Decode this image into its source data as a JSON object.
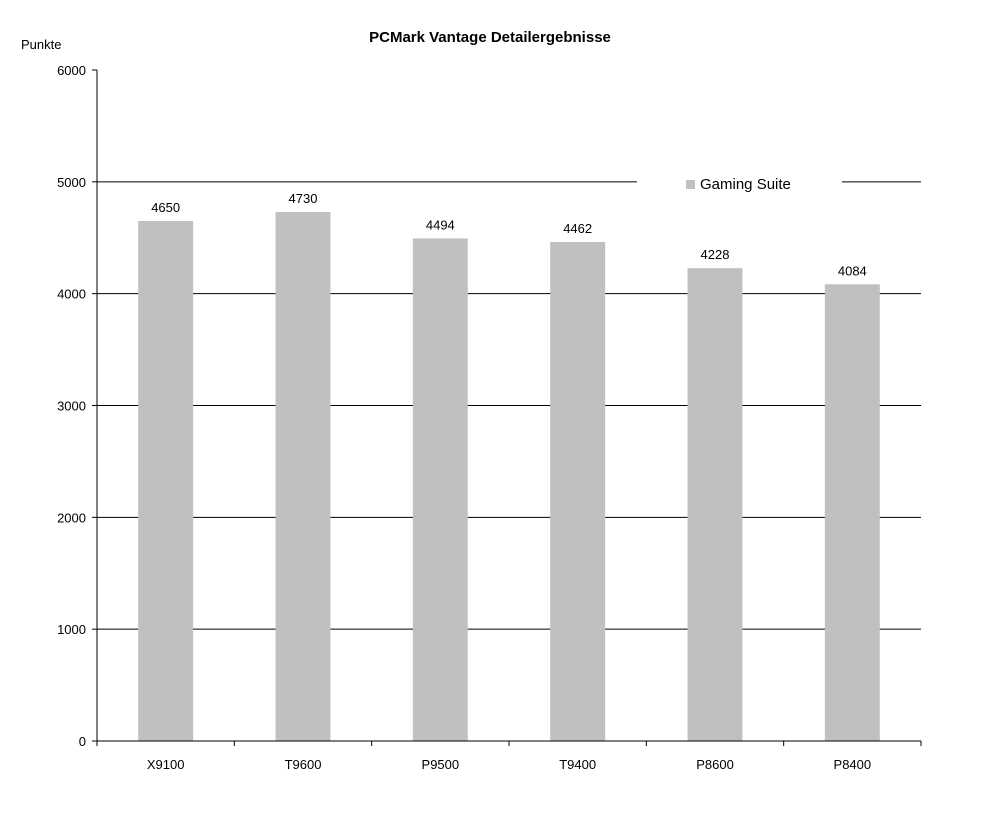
{
  "chart_data": {
    "type": "bar",
    "title": "PCMark Vantage Detailergebnisse",
    "xlabel": "",
    "ylabel": "Punkte",
    "ylim": [
      0,
      6000
    ],
    "yticks": [
      0,
      1000,
      2000,
      3000,
      4000,
      5000,
      6000
    ],
    "categories": [
      "X9100",
      "T9600",
      "P9500",
      "T9400",
      "P8600",
      "P8400"
    ],
    "series": [
      {
        "name": "Gaming Suite",
        "values": [
          4650,
          4730,
          4494,
          4462,
          4228,
          4084
        ],
        "color": "#c0c0c0"
      }
    ],
    "grid": true,
    "legend": "top-right"
  }
}
